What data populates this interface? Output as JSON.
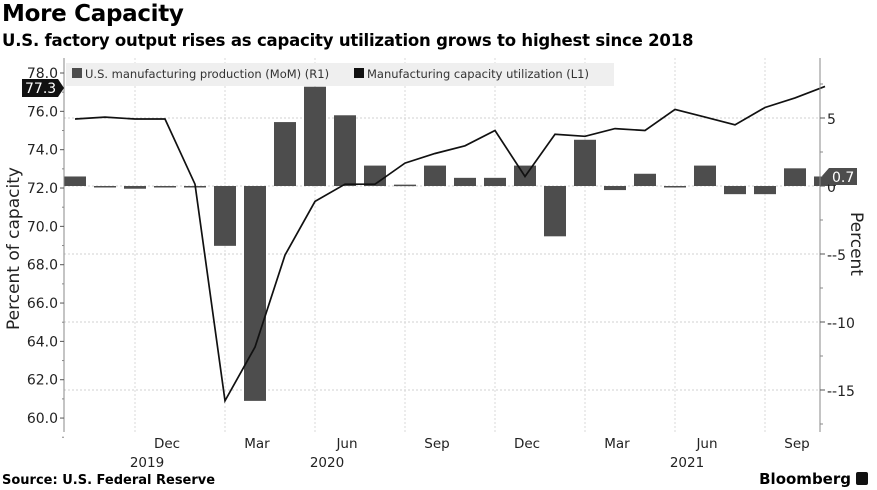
{
  "header": {
    "title": "More Capacity",
    "subtitle": "U.S. factory output rises as capacity utilization grows to highest since 2018"
  },
  "footer": {
    "source": "Source: U.S. Federal Reserve",
    "brand": "Bloomberg"
  },
  "colors": {
    "bar": "#4d4d4d",
    "line": "#111111",
    "grid": "#cccccc",
    "legend_bg": "#efefef",
    "tag_left_bg": "#111111",
    "tag_right_bg": "#4d4d4d"
  },
  "chart_data": {
    "type": "bar+line",
    "title": "More Capacity",
    "subtitle": "U.S. factory output rises as capacity utilization grows to highest since 2018",
    "x": [
      "2019-10",
      "2019-11",
      "2019-12",
      "2020-01",
      "2020-02",
      "2020-03",
      "2020-04",
      "2020-05",
      "2020-06",
      "2020-07",
      "2020-08",
      "2020-09",
      "2020-10",
      "2020-11",
      "2020-12",
      "2021-01",
      "2021-02",
      "2021-03",
      "2021-04",
      "2021-05",
      "2021-06",
      "2021-07",
      "2021-08",
      "2021-09",
      "2021-10",
      "2021-11"
    ],
    "x_tick_labels": [
      {
        "month": "Dec",
        "year": "2019",
        "at": "2019-12"
      },
      {
        "month": "Mar",
        "year": "",
        "at": "2020-03"
      },
      {
        "month": "Jun",
        "year": "2020",
        "at": "2020-06"
      },
      {
        "month": "Sep",
        "year": "",
        "at": "2020-09"
      },
      {
        "month": "Dec",
        "year": "",
        "at": "2020-12"
      },
      {
        "month": "Mar",
        "year": "",
        "at": "2021-03"
      },
      {
        "month": "Jun",
        "year": "2021",
        "at": "2021-06"
      },
      {
        "month": "Sep",
        "year": "",
        "at": "2021-09"
      }
    ],
    "series": [
      {
        "name": "U.S. manufacturing production (MoM) (R1)",
        "type": "bar",
        "axis": "right",
        "values": [
          0.7,
          0.0,
          -0.2,
          -0.1,
          0.0,
          -4.4,
          -15.8,
          4.7,
          7.3,
          5.2,
          1.5,
          0.1,
          1.5,
          0.6,
          0.6,
          1.5,
          -3.7,
          3.4,
          -0.3,
          0.9,
          -0.1,
          1.5,
          -0.6,
          -0.6,
          1.3,
          0.7
        ]
      },
      {
        "name": "Manufacturing capacity utilization (L1)",
        "type": "line",
        "axis": "left",
        "values": [
          75.6,
          75.7,
          75.6,
          75.6,
          72.2,
          60.9,
          63.7,
          68.5,
          71.3,
          72.2,
          72.2,
          73.3,
          73.8,
          74.2,
          75.0,
          72.6,
          74.8,
          74.7,
          75.1,
          75.0,
          76.1,
          75.7,
          75.3,
          76.2,
          76.7,
          77.3
        ]
      }
    ],
    "left_axis": {
      "label": "Percent of capacity",
      "min": 59.4,
      "max": 78.8,
      "ticks": [
        "60.0",
        "62.0",
        "64.0",
        "66.0",
        "68.0",
        "70.0",
        "72.0",
        "74.0",
        "76.0",
        "78.0"
      ]
    },
    "right_axis": {
      "label": "Percent",
      "min": -18,
      "max": 9.5,
      "ticks": [
        "5",
        "0",
        "-5",
        "-10",
        "-15"
      ]
    },
    "last_value_tags": {
      "left": "77.3",
      "right": "0.7"
    },
    "legend": [
      "U.S. manufacturing production (MoM) (R1)",
      "Manufacturing capacity utilization (L1)"
    ],
    "legend_position": "top-left",
    "grid": true
  }
}
